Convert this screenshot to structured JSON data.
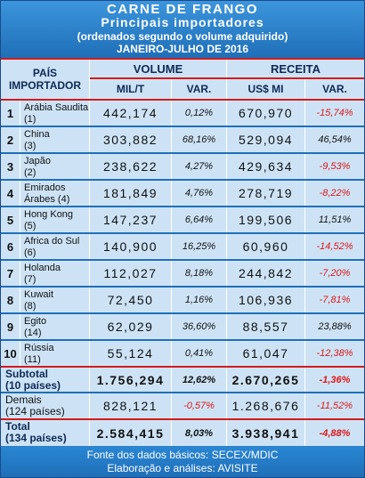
{
  "title": {
    "line1": "CARNE DE FRANGO",
    "line2": "Principais importadores",
    "line3": "(ordenados segundo o volume adquirido)",
    "line4": "JANEIRO-JULHO  DE 2016"
  },
  "headers": {
    "pais": "PAÍS",
    "importador": "IMPORTADOR",
    "volume": "VOLUME",
    "receita": "RECEITA",
    "milt": "MIL/T",
    "var1": "VAR.",
    "usmi": "US$ MI",
    "var2": "VAR."
  },
  "rows": [
    {
      "rank": "1",
      "name": "Arábia Saudita",
      "prev": "(1)",
      "vol": "442,174",
      "vvar": "0,12%",
      "rec": "670,970",
      "rvar": "-15,74%"
    },
    {
      "rank": "2",
      "name": "China",
      "prev": "(3)",
      "vol": "303,882",
      "vvar": "68,16%",
      "rec": "529,094",
      "rvar": "46,54%"
    },
    {
      "rank": "3",
      "name": "Japão",
      "prev": "(2)",
      "vol": "238,622",
      "vvar": "4,27%",
      "rec": "429,634",
      "rvar": "-9,53%"
    },
    {
      "rank": "4",
      "name": "Emirados",
      "name2": "Árabes (4)",
      "prev": "",
      "vol": "181,849",
      "vvar": "4,76%",
      "rec": "278,719",
      "rvar": "-8,22%"
    },
    {
      "rank": "5",
      "name": "Hong Kong",
      "prev": "(5)",
      "vol": "147,237",
      "vvar": "6,64%",
      "rec": "199,506",
      "rvar": "11,51%"
    },
    {
      "rank": "6",
      "name": "Africa do Sul",
      "prev": "(6)",
      "vol": "140,900",
      "vvar": "16,25%",
      "rec": "60,960",
      "rvar": "-14,52%"
    },
    {
      "rank": "7",
      "name": "Holanda",
      "prev": "(7)",
      "vol": "112,027",
      "vvar": "8,18%",
      "rec": "244,842",
      "rvar": "-7,20%"
    },
    {
      "rank": "8",
      "name": "Kuwait",
      "prev": "(8)",
      "vol": "72,450",
      "vvar": "1,16%",
      "rec": "106,936",
      "rvar": "-7,81%"
    },
    {
      "rank": "9",
      "name": "Egito",
      "prev": "(14)",
      "vol": "62,029",
      "vvar": "36,60%",
      "rec": "88,557",
      "rvar": "23,88%"
    },
    {
      "rank": "10",
      "name": "Rússia",
      "prev": "(11)",
      "vol": "55,124",
      "vvar": "0,41%",
      "rec": "61,047",
      "rvar": "-12,38%"
    }
  ],
  "subtotal": {
    "label1": "Subtotal",
    "label2": "(10 países)",
    "vol": "1.756,294",
    "vvar": "12,62%",
    "rec": "2.670,265",
    "rvar": "-1,36%"
  },
  "demais": {
    "label1": "Demais",
    "label2": "(124 países)",
    "vol": "828,121",
    "vvar": "-0,57%",
    "rec": "1.268,676",
    "rvar": "-11,52%"
  },
  "total": {
    "label1": "Total",
    "label2": "(134 países)",
    "vol": "2.584,415",
    "vvar": "8,03%",
    "rec": "3.938,941",
    "rvar": "-4,88%"
  },
  "footer": {
    "line1": "Fonte dos dados básicos: SECEX/MDIC",
    "line2": "Elaboração e análises: AVISITE"
  },
  "colors": {
    "negative": "#e01818",
    "accent": "#d21b1b",
    "header_blue": "#1f6fb8",
    "cell_bg": "#cde3f5"
  }
}
